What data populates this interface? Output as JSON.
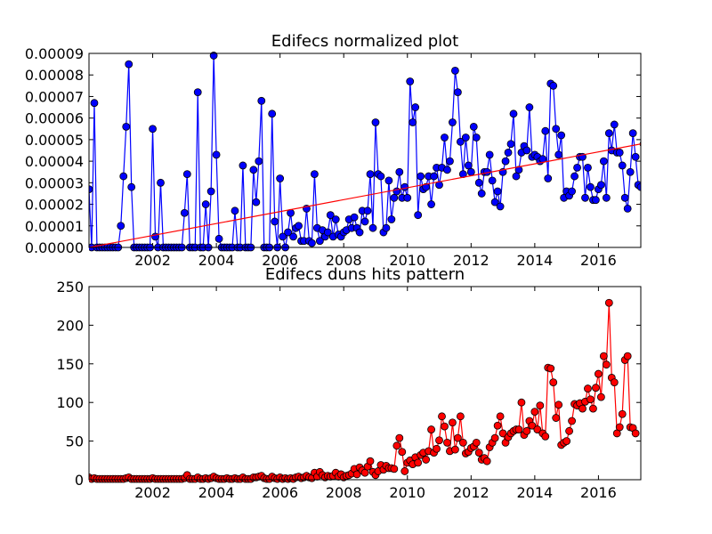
{
  "chart_data": [
    {
      "type": "line",
      "title": "Edifecs normalized plot",
      "xlabel": "",
      "ylabel": "",
      "xlim": [
        2000.0,
        2017.33
      ],
      "ylim": [
        0,
        9e-05
      ],
      "x_ticks": [
        2002,
        2004,
        2006,
        2008,
        2010,
        2012,
        2014,
        2016
      ],
      "y_ticks": [
        0,
        1e-05,
        2e-05,
        3e-05,
        4e-05,
        5e-05,
        6e-05,
        7e-05,
        8e-05,
        9e-05
      ],
      "y_tick_labels": [
        "0.00000",
        "0.00001",
        "0.00002",
        "0.00003",
        "0.00004",
        "0.00005",
        "0.00006",
        "0.00007",
        "0.00008",
        "0.00009"
      ],
      "colors": {
        "series": "#0000ff",
        "trend": "#ff0000"
      },
      "start_year": 2000.0,
      "step_year": 0.08333,
      "series": [
        {
          "values": [
            2.7e-05,
            0,
            6.7e-05,
            0,
            0,
            0,
            0,
            0,
            0,
            0,
            0,
            0,
            1e-05,
            3.3e-05,
            5.6e-05,
            8.5e-05,
            2.8e-05,
            0,
            0,
            0,
            0,
            0,
            0,
            0,
            5.5e-05,
            5e-06,
            0,
            3e-05,
            0,
            0,
            0,
            0,
            0,
            0,
            0,
            0,
            1.6e-05,
            3.4e-05,
            0,
            0,
            0,
            7.2e-05,
            0,
            0,
            2e-05,
            0,
            2.6e-05,
            8.9e-05,
            4.3e-05,
            4e-06,
            0,
            0,
            0,
            0,
            0,
            1.7e-05,
            0,
            0,
            3.8e-05,
            0,
            0,
            0,
            3.6e-05,
            2.1e-05,
            4e-05,
            6.8e-05,
            0,
            0,
            0,
            6.2e-05,
            1.2e-05,
            0,
            3.2e-05,
            5e-06,
            0,
            7e-06,
            1.6e-05,
            5e-06,
            9e-06,
            1e-05,
            3e-06,
            3e-06,
            1.8e-05,
            3e-06,
            2e-06,
            3.4e-05,
            9e-06,
            3e-06,
            8e-06,
            5e-06,
            7e-06,
            1.5e-05,
            5e-06,
            1.3e-05,
            6e-06,
            5e-06,
            7e-06,
            8e-06,
            1.3e-05,
            9e-06,
            1.4e-05,
            9e-06,
            7e-06,
            1.7e-05,
            1.2e-05,
            1.7e-05,
            3.4e-05,
            9e-06,
            5.8e-05,
            3.4e-05,
            3.3e-05,
            7e-06,
            9e-06,
            3.1e-05,
            1.3e-05,
            2.3e-05,
            2.6e-05,
            3.5e-05,
            2.3e-05,
            2.8e-05,
            2.3e-05,
            7.7e-05,
            5.8e-05,
            6.5e-05,
            1.5e-05,
            3.3e-05,
            2.7e-05,
            2.8e-05,
            3.3e-05,
            2e-05,
            3.3e-05,
            3.7e-05,
            2.9e-05,
            3.7e-05,
            5.1e-05,
            3.6e-05,
            4e-05,
            5.8e-05,
            8.2e-05,
            7.2e-05,
            4.9e-05,
            3.4e-05,
            5.1e-05,
            3.8e-05,
            3.5e-05,
            5.6e-05,
            5.1e-05,
            3e-05,
            2.5e-05,
            3.5e-05,
            3.5e-05,
            4.3e-05,
            3.1e-05,
            2.1e-05,
            2.6e-05,
            1.9e-05,
            3.5e-05,
            4e-05,
            4.4e-05,
            4.8e-05,
            6.2e-05,
            3.3e-05,
            3.6e-05,
            4.4e-05,
            4.7e-05,
            4.5e-05,
            6.5e-05,
            4.2e-05,
            4.3e-05,
            4.2e-05,
            4e-05,
            4.1e-05,
            5.4e-05,
            3.2e-05,
            7.6e-05,
            7.5e-05,
            5.5e-05,
            4.3e-05,
            5.2e-05,
            2.3e-05,
            2.6e-05,
            2.4e-05,
            2.6e-05,
            3.3e-05,
            3.7e-05,
            4.2e-05,
            4.2e-05,
            2.3e-05,
            3.7e-05,
            2.8e-05,
            2.2e-05,
            2.2e-05,
            2.7e-05,
            2.9e-05,
            4e-05,
            2.3e-05,
            5.3e-05,
            4.5e-05,
            5.7e-05,
            4.4e-05,
            4.4e-05,
            3.8e-05,
            2.3e-05,
            1.8e-05,
            3.5e-05,
            5.3e-05,
            4.2e-05,
            2.9e-05,
            2.8e-05,
            4.8e-05
          ]
        }
      ],
      "trend": {
        "x": [
          2000.0,
          2017.33
        ],
        "y": [
          0,
          4.8e-05
        ]
      }
    },
    {
      "type": "line",
      "title": "Edifecs duns hits pattern",
      "xlabel": "",
      "ylabel": "",
      "xlim": [
        2000.0,
        2017.33
      ],
      "ylim": [
        0,
        250
      ],
      "x_ticks": [
        2002,
        2004,
        2006,
        2008,
        2010,
        2012,
        2014,
        2016
      ],
      "y_ticks": [
        0,
        50,
        100,
        150,
        200,
        250
      ],
      "y_tick_labels": [
        "0",
        "50",
        "100",
        "150",
        "200",
        "250"
      ],
      "colors": {
        "series": "#ff0000"
      },
      "start_year": 2000.0,
      "step_year": 0.08333,
      "series": [
        {
          "values": [
            3,
            1,
            2,
            1,
            1,
            1,
            1,
            1,
            1,
            1,
            1,
            1,
            1,
            1,
            2,
            3,
            1,
            1,
            1,
            1,
            1,
            1,
            1,
            1,
            2,
            1,
            1,
            1,
            1,
            1,
            1,
            1,
            1,
            1,
            1,
            1,
            2,
            6,
            1,
            1,
            1,
            3,
            1,
            1,
            2,
            1,
            2,
            4,
            2,
            1,
            1,
            1,
            2,
            1,
            1,
            2,
            1,
            1,
            3,
            1,
            1,
            1,
            3,
            3,
            4,
            5,
            2,
            1,
            1,
            4,
            2,
            1,
            3,
            1,
            2,
            1,
            2,
            1,
            3,
            4,
            2,
            3,
            5,
            3,
            2,
            9,
            4,
            10,
            6,
            3,
            5,
            4,
            5,
            9,
            4,
            7,
            3,
            5,
            6,
            8,
            14,
            7,
            16,
            12,
            9,
            17,
            24,
            10,
            6,
            11,
            19,
            13,
            18,
            15,
            15,
            14,
            44,
            54,
            36,
            11,
            22,
            25,
            20,
            29,
            22,
            32,
            35,
            26,
            37,
            65,
            35,
            40,
            51,
            82,
            69,
            48,
            37,
            74,
            39,
            54,
            82,
            48,
            34,
            36,
            41,
            43,
            48,
            35,
            26,
            28,
            24,
            42,
            48,
            54,
            70,
            82,
            60,
            48,
            55,
            60,
            63,
            65,
            65,
            100,
            58,
            63,
            76,
            70,
            88,
            65,
            96,
            60,
            56,
            145,
            144,
            126,
            80,
            97,
            45,
            48,
            50,
            63,
            76,
            98,
            96,
            99,
            92,
            101,
            118,
            104,
            92,
            119,
            137,
            107,
            160,
            149,
            229,
            132,
            126,
            60,
            68,
            85,
            155,
            160,
            68,
            67,
            60
          ]
        }
      ]
    }
  ]
}
